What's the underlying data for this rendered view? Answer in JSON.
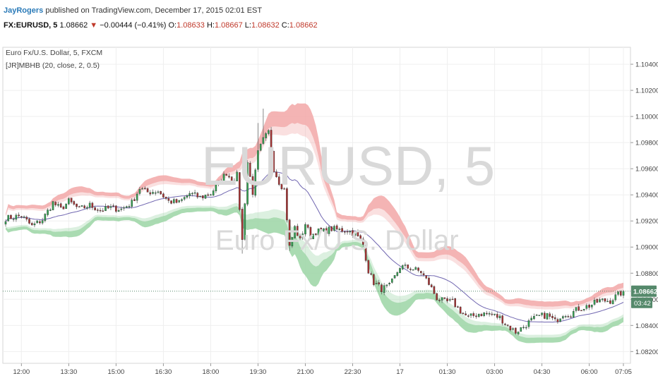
{
  "header": {
    "author": "JayRogers",
    "published_text": "published on TradingView.com, December 17, 2015 02:01 EST",
    "symbol": "FX:EURUSD, 5",
    "last_price": "1.08662",
    "change_arrow": "▼",
    "change": "−0.00444 (−0.41%)",
    "open_label": "O:",
    "open": "1.08633",
    "high_label": "H:",
    "high": "1.08667",
    "low_label": "L:",
    "low": "1.08632",
    "close_label": "C:",
    "close": "1.08662"
  },
  "chart_data": {
    "type": "candlestick",
    "title": "Euro Fx/U.S. Dollar, 5, FXCM",
    "indicator": "[JR]MBHB (20, close, 2, 0.5)",
    "watermark_symbol": "EURUSD, 5",
    "watermark_name": "Euro Fx/U.S. Dollar",
    "ylim": [
      1.0811,
      1.1053
    ],
    "y_ticks": [
      "1.08200",
      "1.08400",
      "1.08600",
      "1.08800",
      "1.09000",
      "1.09200",
      "1.09400",
      "1.09600",
      "1.09800",
      "1.10000",
      "1.10200",
      "1.10400"
    ],
    "x_ticks": [
      {
        "label": "12:00",
        "t": 6
      },
      {
        "label": "13:30",
        "t": 24
      },
      {
        "label": "15:00",
        "t": 42
      },
      {
        "label": "16:30",
        "t": 60
      },
      {
        "label": "18:00",
        "t": 78
      },
      {
        "label": "19:30",
        "t": 96
      },
      {
        "label": "21:00",
        "t": 114
      },
      {
        "label": "22:30",
        "t": 132
      },
      {
        "label": "17",
        "t": 150
      },
      {
        "label": "01:30",
        "t": 168
      },
      {
        "label": "03:00",
        "t": 186
      },
      {
        "label": "04:30",
        "t": 204
      },
      {
        "label": "06:00",
        "t": 222
      },
      {
        "label": "07:05",
        "t": 235
      }
    ],
    "last_price_label": "1.08662",
    "countdown_label": "03:42",
    "last_price": 1.08662,
    "grid": true,
    "colors": {
      "up": "#33a352",
      "down": "#a83232",
      "basis": "#7066b0",
      "upper_band": "#f2a7a7",
      "lower_band": "#9bd5a5",
      "last_price": "#55896b"
    },
    "close_anchors": [
      [
        0,
        1.0922
      ],
      [
        6,
        1.0924
      ],
      [
        10,
        1.0916
      ],
      [
        14,
        1.0921
      ],
      [
        18,
        1.0934
      ],
      [
        21,
        1.0929
      ],
      [
        24,
        1.0935
      ],
      [
        28,
        1.0929
      ],
      [
        32,
        1.0932
      ],
      [
        36,
        1.0928
      ],
      [
        40,
        1.093
      ],
      [
        44,
        1.0929
      ],
      [
        48,
        1.0934
      ],
      [
        51,
        1.0945
      ],
      [
        54,
        1.0942
      ],
      [
        58,
        1.0943
      ],
      [
        62,
        1.0935
      ],
      [
        66,
        1.0934
      ],
      [
        70,
        1.0941
      ],
      [
        74,
        1.0938
      ],
      [
        78,
        1.0941
      ],
      [
        81,
        1.0949
      ],
      [
        84,
        1.0957
      ],
      [
        86,
        1.0951
      ],
      [
        88,
        1.0955
      ],
      [
        90,
        1.0905
      ],
      [
        92,
        1.0965
      ],
      [
        94,
        1.0942
      ],
      [
        96,
        1.0972
      ],
      [
        98,
        1.0982
      ],
      [
        100,
        1.0988
      ],
      [
        102,
        1.096
      ],
      [
        104,
        1.095
      ],
      [
        106,
        1.0944
      ],
      [
        108,
        1.09
      ],
      [
        110,
        1.0915
      ],
      [
        112,
        1.0905
      ],
      [
        114,
        1.0918
      ],
      [
        116,
        1.0908
      ],
      [
        118,
        1.0912
      ],
      [
        121,
        1.0912
      ],
      [
        124,
        1.0914
      ],
      [
        127,
        1.0913
      ],
      [
        130,
        1.0913
      ],
      [
        133,
        1.091
      ],
      [
        136,
        1.0902
      ],
      [
        138,
        1.0882
      ],
      [
        140,
        1.0873
      ],
      [
        143,
        1.0868
      ],
      [
        146,
        1.087
      ],
      [
        148,
        1.0877
      ],
      [
        150,
        1.0885
      ],
      [
        154,
        1.0884
      ],
      [
        158,
        1.0881
      ],
      [
        161,
        1.0872
      ],
      [
        164,
        1.0861
      ],
      [
        167,
        1.0858
      ],
      [
        170,
        1.0858
      ],
      [
        173,
        1.0851
      ],
      [
        176,
        1.0846
      ],
      [
        180,
        1.0849
      ],
      [
        184,
        1.0849
      ],
      [
        188,
        1.0846
      ],
      [
        192,
        1.0838
      ],
      [
        194,
        1.0835
      ],
      [
        197,
        1.0839
      ],
      [
        200,
        1.0844
      ],
      [
        203,
        1.0847
      ],
      [
        206,
        1.0848
      ],
      [
        209,
        1.0843
      ],
      [
        212,
        1.0849
      ],
      [
        215,
        1.0849
      ],
      [
        218,
        1.0853
      ],
      [
        222,
        1.0855
      ],
      [
        226,
        1.0859
      ],
      [
        230,
        1.0859
      ],
      [
        232,
        1.0862
      ],
      [
        235,
        1.08662
      ]
    ],
    "spikes": [
      {
        "t": 90,
        "low": 1.0895
      },
      {
        "t": 96,
        "high": 1.0995
      },
      {
        "t": 98,
        "high": 1.1006
      },
      {
        "t": 101,
        "high": 1.0992
      },
      {
        "t": 108,
        "low": 1.0897
      }
    ],
    "candle_count": 236
  }
}
